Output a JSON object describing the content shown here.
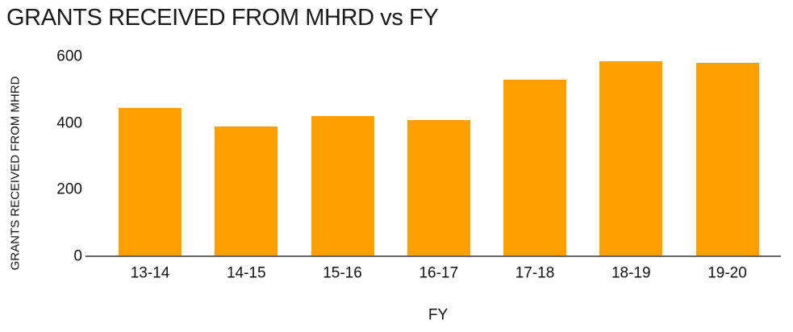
{
  "chart_data": {
    "type": "bar",
    "title": "GRANTS RECEIVED FROM MHRD vs FY",
    "xlabel": "FY",
    "ylabel": "GRANTS RECEIVED FROM MHRD",
    "categories": [
      "13-14",
      "14-15",
      "15-16",
      "16-17",
      "17-18",
      "18-19",
      "19-20"
    ],
    "values": [
      445,
      390,
      420,
      410,
      530,
      585,
      580
    ],
    "ylim": [
      0,
      600
    ],
    "yticks": [
      0,
      200,
      400,
      600
    ],
    "grid": false,
    "legend": false,
    "colors": {
      "bar": "#FFA000",
      "axis_line": "#666666",
      "text": "#111111",
      "title_text": "#1a1a1a",
      "background": "#ffffff"
    }
  }
}
